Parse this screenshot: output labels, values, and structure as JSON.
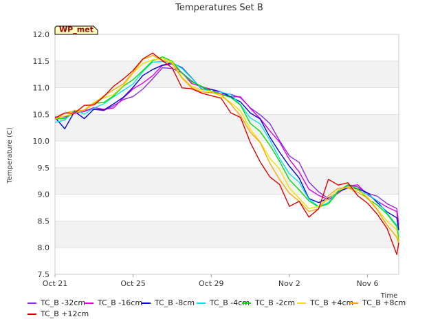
{
  "chart_data": {
    "type": "line",
    "title": "Temperatures Set B",
    "xlabel": "Time",
    "ylabel": "Temperature (C)",
    "ylim": [
      7.5,
      12.0
    ],
    "xlim": [
      "Oct 21",
      "Nov 7.6"
    ],
    "x_ticks": [
      "Oct 21",
      "Oct 25",
      "Oct 29",
      "Nov 2",
      "Nov 6"
    ],
    "y_ticks": [
      "7.5",
      "8.0",
      "8.5",
      "9.0",
      "9.5",
      "10.0",
      "10.5",
      "11.0",
      "11.5",
      "12.0"
    ],
    "badge": "WP_met",
    "grid": "horizontal alternating bands",
    "legend_position": "bottom",
    "x_days": [
      0,
      0.5,
      1,
      1.5,
      2,
      2.5,
      3,
      3.5,
      4,
      4.5,
      5,
      5.5,
      6,
      6.5,
      7,
      7.5,
      8,
      8.5,
      9,
      9.5,
      10,
      10.5,
      11,
      11.5,
      12,
      12.5,
      13,
      13.5,
      14,
      14.5,
      15,
      15.5,
      16,
      16.5,
      17,
      17.5,
      18
    ],
    "series": [
      {
        "name": "TC_B -32cm",
        "color": "#8a2be2",
        "values": [
          10.42,
          10.45,
          10.55,
          10.55,
          10.6,
          10.6,
          10.65,
          10.75,
          10.85,
          11.0,
          11.15,
          11.35,
          11.38,
          11.3,
          11.1,
          11.0,
          10.95,
          10.9,
          10.85,
          10.8,
          10.65,
          10.5,
          10.3,
          10.0,
          9.75,
          9.6,
          9.2,
          9.05,
          8.95,
          9.05,
          9.15,
          9.15,
          9.05,
          8.95,
          8.8,
          8.75,
          8.45
        ]
      },
      {
        "name": "TC_B -16cm",
        "color": "#e000e0",
        "values": [
          10.42,
          10.45,
          10.55,
          10.55,
          10.6,
          10.6,
          10.65,
          10.8,
          10.95,
          11.1,
          11.25,
          11.4,
          11.42,
          11.3,
          11.1,
          11.0,
          10.95,
          10.9,
          10.85,
          10.8,
          10.6,
          10.45,
          10.2,
          9.95,
          9.65,
          9.45,
          9.1,
          8.95,
          8.9,
          9.05,
          9.15,
          9.15,
          9.0,
          8.9,
          8.75,
          8.65,
          8.35
        ]
      },
      {
        "name": "TC_B -8cm",
        "color": "#0000dd",
        "values": [
          10.45,
          10.2,
          10.55,
          10.45,
          10.6,
          10.55,
          10.7,
          10.85,
          11.0,
          11.2,
          11.35,
          11.45,
          11.45,
          11.35,
          11.2,
          11.0,
          10.95,
          10.9,
          10.85,
          10.75,
          10.5,
          10.4,
          10.1,
          9.8,
          9.5,
          9.3,
          8.95,
          8.85,
          8.9,
          9.05,
          9.15,
          9.1,
          9.0,
          8.85,
          8.7,
          8.55,
          8.3
        ]
      },
      {
        "name": "TC_B -4cm",
        "color": "#00e5ee",
        "values": [
          10.38,
          10.4,
          10.55,
          10.5,
          10.65,
          10.7,
          10.8,
          10.95,
          11.1,
          11.3,
          11.45,
          11.5,
          11.5,
          11.35,
          11.15,
          11.0,
          10.95,
          10.9,
          10.85,
          10.7,
          10.45,
          10.3,
          10.0,
          9.7,
          9.4,
          9.2,
          8.9,
          8.8,
          8.85,
          9.05,
          9.15,
          9.1,
          9.0,
          8.85,
          8.65,
          8.45,
          8.2
        ]
      },
      {
        "name": "TC_B -2cm",
        "color": "#00dd00",
        "values": [
          10.4,
          10.45,
          10.55,
          10.55,
          10.7,
          10.75,
          10.85,
          11.0,
          11.15,
          11.35,
          11.5,
          11.55,
          11.5,
          11.3,
          11.1,
          11.0,
          10.95,
          10.9,
          10.8,
          10.65,
          10.35,
          10.2,
          9.9,
          9.6,
          9.3,
          9.1,
          8.85,
          8.75,
          8.85,
          9.05,
          9.15,
          9.1,
          8.95,
          8.8,
          8.6,
          8.4,
          8.15
        ]
      },
      {
        "name": "TC_B +4cm",
        "color": "#f0e000",
        "values": [
          10.4,
          10.45,
          10.55,
          10.6,
          10.7,
          10.8,
          10.9,
          11.05,
          11.25,
          11.45,
          11.55,
          11.55,
          11.45,
          11.2,
          11.05,
          10.95,
          10.9,
          10.85,
          10.75,
          10.55,
          10.2,
          10.0,
          9.7,
          9.45,
          9.1,
          8.95,
          8.75,
          8.75,
          8.9,
          9.1,
          9.15,
          9.05,
          8.95,
          8.75,
          8.5,
          8.3,
          8.05
        ]
      },
      {
        "name": "TC_B +8cm",
        "color": "#ffa500",
        "values": [
          10.42,
          10.5,
          10.55,
          10.6,
          10.72,
          10.82,
          10.95,
          11.1,
          11.3,
          11.5,
          11.6,
          11.55,
          11.45,
          11.15,
          11.0,
          10.95,
          10.9,
          10.85,
          10.7,
          10.5,
          10.15,
          9.95,
          9.6,
          9.3,
          9.0,
          8.85,
          8.7,
          8.75,
          8.95,
          9.1,
          9.15,
          9.05,
          8.9,
          8.7,
          8.45,
          8.2,
          8.05
        ]
      },
      {
        "name": "TC_B +12cm",
        "color": "#dd0000",
        "values": [
          10.45,
          10.55,
          10.5,
          10.65,
          10.7,
          10.85,
          11.0,
          11.15,
          11.35,
          11.55,
          11.62,
          11.5,
          11.4,
          11.0,
          10.95,
          10.9,
          10.88,
          10.8,
          10.5,
          10.45,
          10.0,
          9.6,
          9.3,
          9.2,
          8.8,
          8.85,
          8.55,
          8.75,
          9.3,
          9.15,
          9.2,
          9.0,
          8.85,
          8.6,
          8.35,
          7.9,
          8.1
        ]
      }
    ]
  }
}
